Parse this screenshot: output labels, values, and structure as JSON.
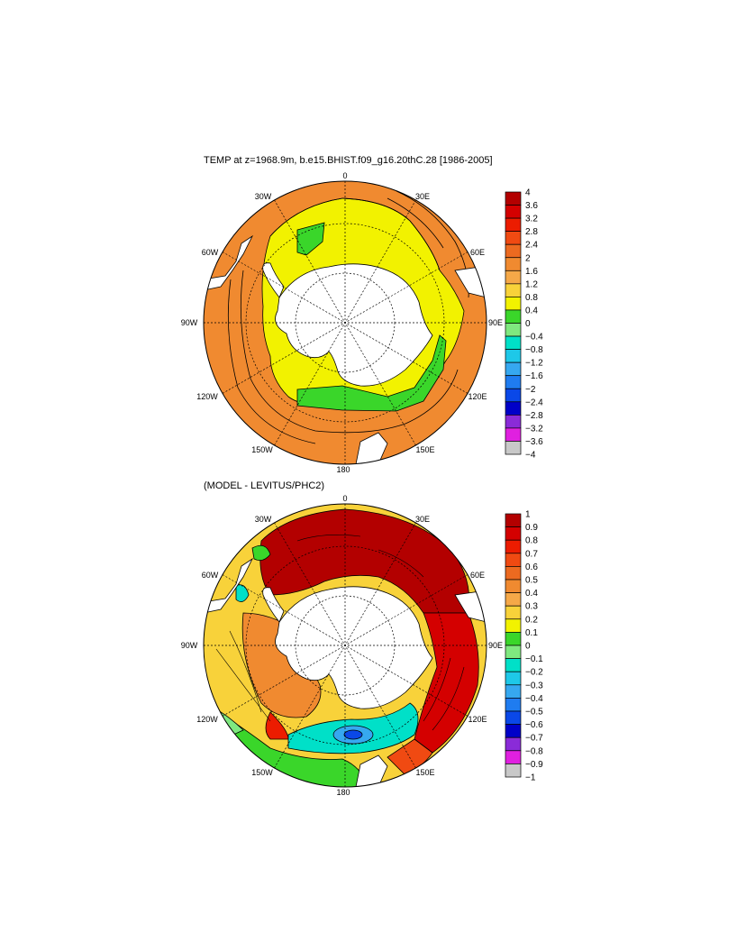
{
  "maps": [
    {
      "title": "TEMP at z=1968.9m, b.e15.BHIST.f09_g16.20thC.28 [1986-2005]",
      "longitude_labels": {
        "top": "0",
        "top_right": "30E",
        "right_upper": "60E",
        "right": "90E",
        "right_lower": "120E",
        "bottom_right": "150E",
        "bottom": "180",
        "bottom_left": "150W",
        "left_lower": "120W",
        "left": "90W",
        "left_upper": "60W",
        "top_left": "30W"
      },
      "colorbar": {
        "labels": [
          "4",
          "3.6",
          "3.2",
          "2.8",
          "2.4",
          "2",
          "1.6",
          "1.2",
          "0.8",
          "0.4",
          "0",
          "−0.4",
          "−0.8",
          "−1.2",
          "−1.6",
          "−2",
          "−2.4",
          "−2.8",
          "−3.2",
          "−3.6",
          "−4"
        ],
        "colors": [
          "#b30000",
          "#d40000",
          "#ec1c00",
          "#f04a12",
          "#ec6a20",
          "#f08a30",
          "#f5a848",
          "#f8d23a",
          "#f2f200",
          "#3ad62a",
          "#7fe87f",
          "#00e0c8",
          "#1ec8e8",
          "#36a8f0",
          "#1f7cf0",
          "#0a48e8",
          "#0000c8",
          "#8a2bd8",
          "#e020e0",
          "#c8c8c8",
          "#6e6e6e"
        ]
      }
    },
    {
      "title": "(MODEL - LEVITUS/PHC2)",
      "longitude_labels": {
        "top": "0",
        "top_right": "30E",
        "right_upper": "60E",
        "right": "90E",
        "right_lower": "120E",
        "bottom_right": "150E",
        "bottom": "180",
        "bottom_left": "150W",
        "left_lower": "120W",
        "left": "90W",
        "left_upper": "60W",
        "top_left": "30W"
      },
      "colorbar": {
        "labels": [
          "1",
          "0.9",
          "0.8",
          "0.7",
          "0.6",
          "0.5",
          "0.4",
          "0.3",
          "0.2",
          "0.1",
          "0",
          "−0.1",
          "−0.2",
          "−0.3",
          "−0.4",
          "−0.5",
          "−0.6",
          "−0.7",
          "−0.8",
          "−0.9",
          "−1"
        ],
        "colors": [
          "#b30000",
          "#d40000",
          "#ec1c00",
          "#f04a12",
          "#ec6a20",
          "#f08a30",
          "#f5a848",
          "#f8d23a",
          "#f2f200",
          "#3ad62a",
          "#7fe87f",
          "#00e0c8",
          "#1ec8e8",
          "#36a8f0",
          "#1f7cf0",
          "#0a48e8",
          "#0000c8",
          "#8a2bd8",
          "#e020e0",
          "#c8c8c8",
          "#6e6e6e"
        ]
      }
    }
  ]
}
